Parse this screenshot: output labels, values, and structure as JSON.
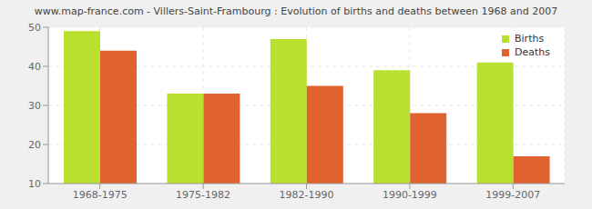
{
  "chart_data": {
    "type": "bar",
    "title": "www.map-france.com - Villers-Saint-Frambourg : Evolution of births and deaths between 1968 and 2007",
    "categories": [
      "1968-1975",
      "1975-1982",
      "1982-1990",
      "1990-1999",
      "1999-2007"
    ],
    "series": [
      {
        "name": "Births",
        "color": "#b9e02e",
        "values": [
          49,
          33,
          47,
          39,
          41
        ]
      },
      {
        "name": "Deaths",
        "color": "#e0632f",
        "values": [
          44,
          33,
          35,
          28,
          17
        ]
      }
    ],
    "ylim": [
      10,
      50
    ],
    "yticks": [
      10,
      20,
      30,
      40,
      50
    ],
    "grid": true,
    "legend": "upper right"
  }
}
